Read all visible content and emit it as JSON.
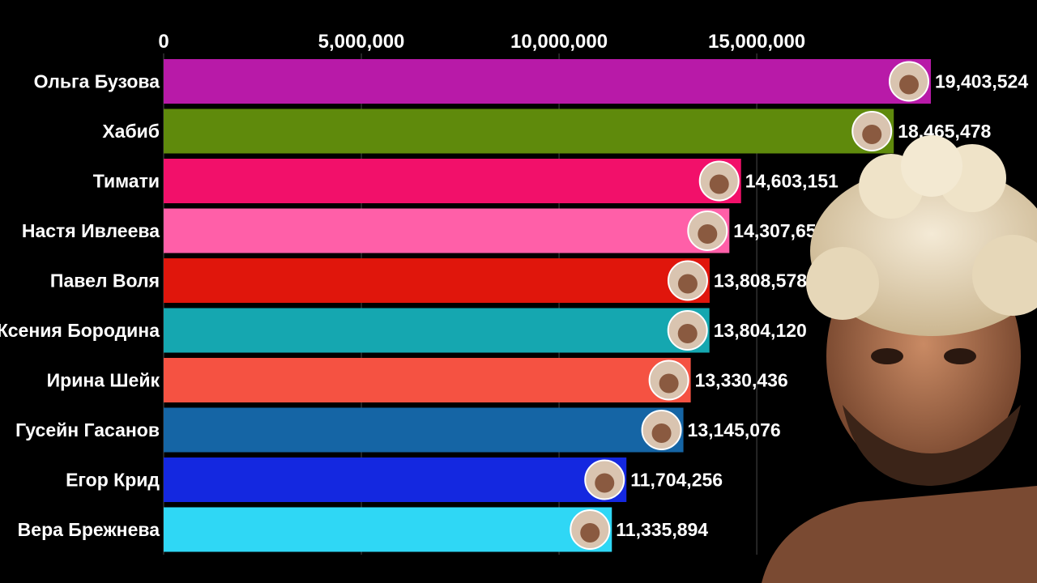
{
  "chart_data": {
    "type": "bar",
    "orientation": "horizontal",
    "categories": [
      "Ольга Бузова",
      "Хабиб",
      "Тимати",
      "Настя Ивлеева",
      "Павел Воля",
      "Ксения Бородина",
      "Ирина Шейк",
      "Гусейн Гасанов",
      "Егор Крид",
      "Вера Брежнева"
    ],
    "values": [
      19403524,
      18465478,
      14603151,
      14307650,
      13808578,
      13804120,
      13330436,
      13145076,
      11704256,
      11335894
    ],
    "value_labels": [
      "19,403,524",
      "18,465,478",
      "14,603,151",
      "14,307,650",
      "13,808,578",
      "13,804,120",
      "13,330,436",
      "13,145,076",
      "11,704,256",
      "11,335,894"
    ],
    "colors": [
      "#b81aa8",
      "#5f8a0c",
      "#f2106a",
      "#ff5fa8",
      "#e0160c",
      "#15a7b0",
      "#f55242",
      "#1565a5",
      "#1428e0",
      "#2fd7f5"
    ],
    "xticks": [
      0,
      5000000,
      10000000,
      15000000
    ],
    "xtick_labels": [
      "0",
      "5,000,000",
      "10,000,000",
      "15,000,000"
    ],
    "xlim": [
      0,
      19403524
    ],
    "grid": true,
    "axis_position": "top",
    "title": "",
    "xlabel": "",
    "ylabel": ""
  },
  "decorations": {
    "bar_end_icon": "avatar-icon",
    "featured_image": "portrait-photo"
  }
}
